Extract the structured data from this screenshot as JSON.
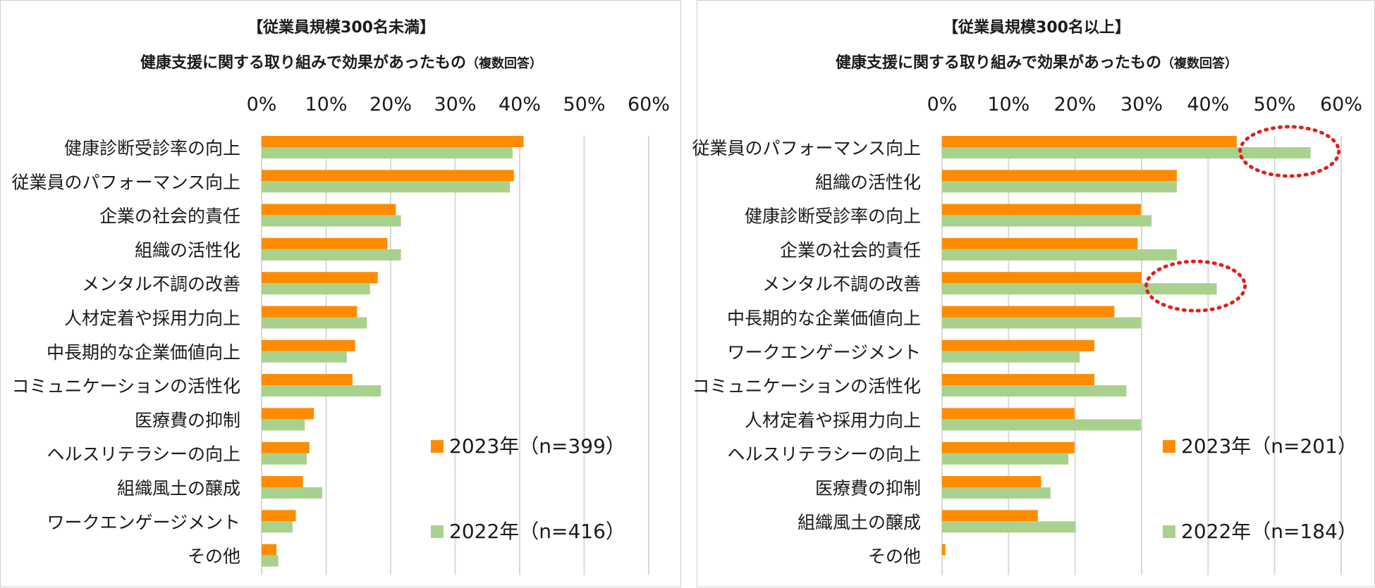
{
  "colors": {
    "series_2023": "#FF8C00",
    "series_2022": "#A9D18E",
    "grid": "#D9D9D9",
    "highlight": "#E0201B"
  },
  "chart_data": [
    {
      "type": "bar",
      "orientation": "horizontal",
      "title": "【従業員規模300名未満】",
      "subtitle": "健康支援に関する取り組みで効果があったもの",
      "subtitle_note": "（複数回答）",
      "xlim": [
        0,
        60
      ],
      "xticks": [
        "0%",
        "10%",
        "20%",
        "30%",
        "40%",
        "50%",
        "60%"
      ],
      "legend_position": "right",
      "categories": [
        "健康診断受診率の向上",
        "従業員のパフォーマンス向上",
        "企業の社会的責任",
        "組織の活性化",
        "メンタル不調の改善",
        "人材定着や採用力向上",
        "中長期的な企業価値向上",
        "コミュニケーションの活性化",
        "医療費の抑制",
        "ヘルスリテラシーの向上",
        "組織風土の醸成",
        "ワークエンゲージメント",
        "その他"
      ],
      "series": [
        {
          "name": "2023年（n=399）",
          "values": [
            40.6,
            39.1,
            20.8,
            19.5,
            18.0,
            14.8,
            14.5,
            14.1,
            8.1,
            7.4,
            6.4,
            5.3,
            2.3
          ]
        },
        {
          "name": "2022年（n=416）",
          "values": [
            38.9,
            38.5,
            21.6,
            21.6,
            16.8,
            16.3,
            13.2,
            18.5,
            6.7,
            7.0,
            9.4,
            4.8,
            2.6
          ]
        }
      ],
      "highlights": []
    },
    {
      "type": "bar",
      "orientation": "horizontal",
      "title": "【従業員規模300名以上】",
      "subtitle": "健康支援に関する取り組みで効果があったもの",
      "subtitle_note": "（複数回答）",
      "xlim": [
        0,
        60
      ],
      "xticks": [
        "0%",
        "10%",
        "20%",
        "30%",
        "40%",
        "50%",
        "60%"
      ],
      "legend_position": "right",
      "categories": [
        "従業員のパフォーマンス向上",
        "組織の活性化",
        "健康診断受診率の向上",
        "企業の社会的責任",
        "メンタル不調の改善",
        "中長期的な企業価値向上",
        "ワークエンゲージメント",
        "コミュニケーションの活性化",
        "人材定着や採用力向上",
        "ヘルスリテラシーの向上",
        "医療費の抑制",
        "組織風土の醸成",
        "その他"
      ],
      "series": [
        {
          "name": "2023年（n=201）",
          "values": [
            44.3,
            35.3,
            29.9,
            29.4,
            30.0,
            25.9,
            22.9,
            22.9,
            19.9,
            19.9,
            14.9,
            14.4,
            0.5
          ]
        },
        {
          "name": "2022年（n=184）",
          "values": [
            55.4,
            35.3,
            31.5,
            35.3,
            41.3,
            29.9,
            20.7,
            27.7,
            29.9,
            19.0,
            16.3,
            20.1,
            0
          ]
        }
      ],
      "highlights": [
        {
          "category_index": 0,
          "series_index": 1
        },
        {
          "category_index": 4,
          "series_index": 1
        }
      ]
    }
  ]
}
